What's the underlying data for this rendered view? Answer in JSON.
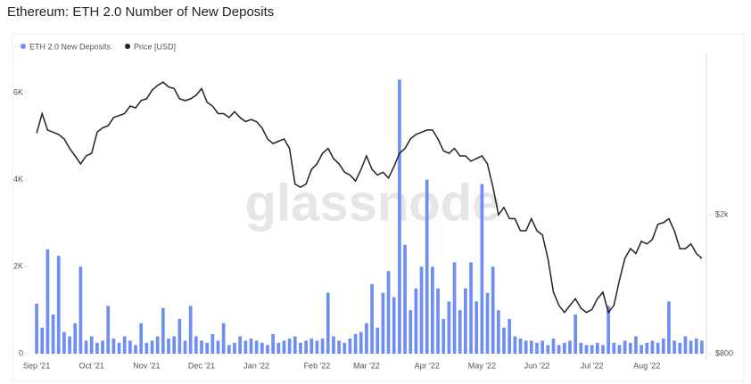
{
  "chart_data": {
    "type": "bar_line",
    "title": "Ethereum: ETH 2.0 Number of New Deposits",
    "watermark": "glassnode",
    "categories": [
      "Sep '21",
      null,
      null,
      null,
      null,
      null,
      null,
      null,
      null,
      null,
      "Oct '21",
      null,
      null,
      null,
      null,
      null,
      null,
      null,
      null,
      null,
      "Nov '21",
      null,
      null,
      null,
      null,
      null,
      null,
      null,
      null,
      null,
      "Dec '21",
      null,
      null,
      null,
      null,
      null,
      null,
      null,
      null,
      null,
      "Jan '22",
      null,
      null,
      null,
      null,
      null,
      null,
      null,
      null,
      null,
      null,
      "Feb '22",
      null,
      null,
      null,
      null,
      null,
      null,
      null,
      null,
      "Mar '22",
      null,
      null,
      null,
      null,
      null,
      null,
      null,
      null,
      null,
      null,
      "Apr '22",
      null,
      null,
      null,
      null,
      null,
      null,
      null,
      null,
      null,
      "May '22",
      null,
      null,
      null,
      null,
      null,
      null,
      null,
      null,
      null,
      "Jun '22",
      null,
      null,
      null,
      null,
      null,
      null,
      null,
      null,
      null,
      "Jul '22",
      null,
      null,
      null,
      null,
      null,
      null,
      null,
      null,
      null,
      "Aug '22",
      null,
      null,
      null,
      null,
      null,
      null,
      null,
      null,
      null,
      null
    ],
    "series": [
      {
        "name": "ETH 2.0 New Deposits",
        "color": "#6f8ef2",
        "kind": "bar",
        "values": [
          1150,
          600,
          2400,
          900,
          2250,
          500,
          400,
          700,
          2000,
          300,
          400,
          250,
          300,
          1100,
          350,
          250,
          400,
          300,
          200,
          700,
          250,
          300,
          400,
          1050,
          350,
          400,
          800,
          300,
          1100,
          400,
          300,
          250,
          450,
          300,
          700,
          200,
          250,
          400,
          300,
          350,
          300,
          250,
          200,
          450,
          250,
          300,
          350,
          400,
          250,
          300,
          350,
          300,
          350,
          1400,
          400,
          300,
          250,
          350,
          450,
          500,
          700,
          1600,
          600,
          1400,
          1900,
          1300,
          6300,
          2500,
          1000,
          1500,
          2000,
          4000,
          2000,
          1500,
          800,
          1200,
          2100,
          1000,
          1500,
          2100,
          1200,
          3900,
          1400,
          2000,
          1000,
          600,
          800,
          400,
          350,
          300,
          300,
          250,
          300,
          200,
          350,
          200,
          250,
          300,
          900,
          250,
          200,
          200,
          250,
          200,
          1100,
          250,
          200,
          300,
          250,
          400,
          200,
          250,
          300,
          250,
          350,
          1200,
          300,
          250,
          400,
          300,
          350,
          300
        ]
      },
      {
        "name": "Price [USD]",
        "color": "#222222",
        "kind": "line",
        "axis": "y2",
        "values": [
          3430,
          3900,
          3500,
          3450,
          3400,
          3300,
          3100,
          2950,
          2800,
          2950,
          3000,
          3450,
          3550,
          3600,
          3800,
          3850,
          3900,
          4100,
          4050,
          4250,
          4300,
          4550,
          4700,
          4800,
          4650,
          4600,
          4300,
          4250,
          4300,
          4400,
          4600,
          4200,
          4100,
          3900,
          3900,
          3800,
          3950,
          3800,
          3700,
          3750,
          3700,
          3550,
          3300,
          3200,
          3250,
          3300,
          3100,
          2450,
          2400,
          2450,
          2700,
          2800,
          3000,
          3100,
          2900,
          2800,
          2650,
          2600,
          2500,
          2700,
          2950,
          2700,
          2600,
          2650,
          2550,
          2750,
          3000,
          3100,
          3300,
          3400,
          3450,
          3500,
          3500,
          3300,
          3050,
          3000,
          3100,
          2950,
          2950,
          2850,
          2900,
          2950,
          2800,
          2400,
          2000,
          2100,
          1950,
          1950,
          1800,
          1800,
          1950,
          1800,
          1750,
          1500,
          1200,
          1100,
          1050,
          1100,
          1150,
          1080,
          1050,
          1070,
          1150,
          1200,
          1050,
          1100,
          1300,
          1500,
          1600,
          1550,
          1680,
          1650,
          1700,
          1880,
          1900,
          1950,
          1800,
          1600,
          1600,
          1650,
          1550,
          1500
        ]
      }
    ],
    "ylim": [
      0,
      6900
    ],
    "yticks": [
      0,
      {
        "value": 2000,
        "label": "2K"
      },
      {
        "value": 4000,
        "label": "4K"
      },
      {
        "value": 6000,
        "label": "6K"
      }
    ],
    "y2lim": [
      800,
      5800
    ],
    "y2scale": "log",
    "y2ticks": [
      {
        "value": 800,
        "label": "$800"
      },
      {
        "value": 2000,
        "label": "$2k"
      }
    ],
    "grid": false
  }
}
